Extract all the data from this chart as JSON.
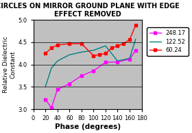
{
  "title": "CIRCLES ON MIRROR GROUND PLANE WITH EDGE\nEFFECT REMOVED",
  "xlabel": "Phase (degrees)",
  "ylabel": "Relative Dielectric\nConstant",
  "xlim": [
    0,
    180
  ],
  "ylim": [
    3,
    5
  ],
  "yticks": [
    3,
    3.5,
    4,
    4.5,
    5
  ],
  "xticks": [
    0,
    20,
    40,
    60,
    80,
    100,
    120,
    140,
    160,
    180
  ],
  "bg_color": "#c0c0c0",
  "fig_bg": "#ffffff",
  "series": [
    {
      "label": "248.17",
      "color": "#ff00ff",
      "marker": "s",
      "x": [
        20,
        30,
        40,
        60,
        80,
        100,
        120,
        140,
        160,
        170
      ],
      "y": [
        3.22,
        3.03,
        3.44,
        3.57,
        3.75,
        3.86,
        4.05,
        4.06,
        4.12,
        4.32
      ]
    },
    {
      "label": "122.52",
      "color": "#008080",
      "marker": null,
      "x": [
        20,
        30,
        40,
        60,
        80,
        100,
        120,
        140,
        160,
        170
      ],
      "y": [
        3.5,
        3.92,
        4.08,
        4.22,
        4.28,
        4.32,
        4.42,
        4.08,
        4.14,
        4.57
      ]
    },
    {
      "label": "60.24",
      "color": "#ff0000",
      "marker": "s",
      "x": [
        20,
        30,
        40,
        60,
        80,
        100,
        110,
        120,
        130,
        140,
        150,
        160,
        170
      ],
      "y": [
        4.25,
        4.37,
        4.44,
        4.47,
        4.47,
        4.2,
        4.22,
        4.25,
        4.37,
        4.42,
        4.47,
        4.56,
        4.88
      ]
    }
  ],
  "legend_labels": [
    "248.17",
    "122.52",
    "60.24"
  ],
  "legend_colors": [
    "#ff00ff",
    "#008080",
    "#ff0000"
  ],
  "legend_markers": [
    "s",
    null,
    "s"
  ]
}
